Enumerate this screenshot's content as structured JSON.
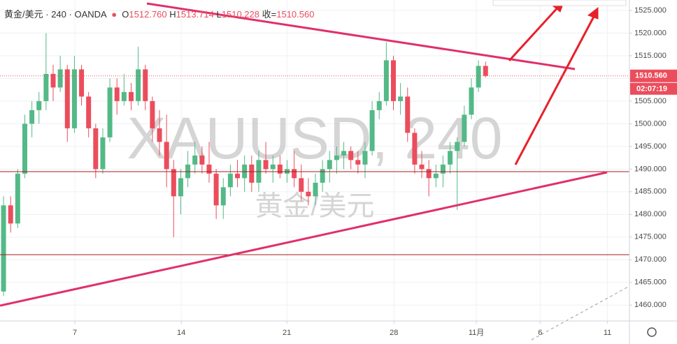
{
  "chart_data": {
    "type": "candlestick",
    "header": {
      "symbol": "黄金/美元",
      "interval": "240",
      "source": "OANDA",
      "o_label": "O",
      "o": "1512.760",
      "h_label": "H",
      "h": "1513.714",
      "l_label": "L",
      "l": "1510.228",
      "c_label": "收",
      "c": "1510.560"
    },
    "watermark": "XAUUSD, 240",
    "watermark_sub": "黄金/美元",
    "last_price_label": "1510.560",
    "countdown": "02:07:19",
    "up_color": "#53b987",
    "down_color": "#eb4d5c",
    "grid": true,
    "xlim": [
      0,
      88.8
    ],
    "ylim": [
      1456.5,
      1527.3
    ],
    "xticks": [
      {
        "value": 10.56,
        "label": "7"
      },
      {
        "value": 25.57,
        "label": "14"
      },
      {
        "value": 40.47,
        "label": "21"
      },
      {
        "value": 55.58,
        "label": "28"
      },
      {
        "value": 67.2,
        "label": "11月"
      },
      {
        "value": 76.2,
        "label": "6"
      },
      {
        "value": 85.7,
        "label": "11"
      }
    ],
    "yticks": [
      {
        "value": 1460,
        "label": "1460.000"
      },
      {
        "value": 1465,
        "label": "1465.000"
      },
      {
        "value": 1470,
        "label": "1470.000"
      },
      {
        "value": 1475,
        "label": "1475.000"
      },
      {
        "value": 1480,
        "label": "1480.000"
      },
      {
        "value": 1485,
        "label": "1485.000"
      },
      {
        "value": 1490,
        "label": "1490.000"
      },
      {
        "value": 1495,
        "label": "1495.000"
      },
      {
        "value": 1500,
        "label": "1500.000"
      },
      {
        "value": 1505,
        "label": "1505.000"
      },
      {
        "value": 1510,
        "label": "1510.000"
      },
      {
        "value": 1515,
        "label": "1515.000"
      },
      {
        "value": 1520,
        "label": "1520.000"
      },
      {
        "value": 1525,
        "label": "1525.000"
      }
    ],
    "candles": [
      [
        1463,
        1484,
        1462,
        1482
      ],
      [
        1482,
        1484,
        1476,
        1478
      ],
      [
        1478,
        1490,
        1477,
        1489
      ],
      [
        1489,
        1502,
        1488,
        1500
      ],
      [
        1500,
        1505,
        1497,
        1503
      ],
      [
        1503,
        1507,
        1500,
        1505
      ],
      [
        1505,
        1520,
        1503,
        1511
      ],
      [
        1511,
        1513,
        1505,
        1508
      ],
      [
        1508,
        1515,
        1507,
        1512
      ],
      [
        1512,
        1513,
        1496,
        1499
      ],
      [
        1499,
        1515,
        1498,
        1512
      ],
      [
        1512,
        1513,
        1504,
        1506
      ],
      [
        1506,
        1507,
        1497,
        1499
      ],
      [
        1499,
        1500,
        1488,
        1490
      ],
      [
        1490,
        1499,
        1489,
        1497
      ],
      [
        1497,
        1510,
        1496,
        1508
      ],
      [
        1508,
        1510,
        1502,
        1505
      ],
      [
        1505,
        1511,
        1504,
        1507
      ],
      [
        1507,
        1509,
        1503,
        1505
      ],
      [
        1505,
        1517,
        1504,
        1512
      ],
      [
        1512,
        1513,
        1503,
        1505
      ],
      [
        1505,
        1506,
        1496,
        1499
      ],
      [
        1499,
        1503,
        1493,
        1496
      ],
      [
        1496,
        1502,
        1486,
        1490
      ],
      [
        1490,
        1492,
        1475,
        1484
      ],
      [
        1484,
        1490,
        1480,
        1488
      ],
      [
        1488,
        1494,
        1486,
        1491
      ],
      [
        1491,
        1496,
        1489,
        1493
      ],
      [
        1493,
        1495,
        1489,
        1491
      ],
      [
        1491,
        1496,
        1487,
        1489
      ],
      [
        1489,
        1490,
        1479,
        1482
      ],
      [
        1482,
        1488,
        1479,
        1486
      ],
      [
        1486,
        1491,
        1484,
        1489
      ],
      [
        1489,
        1492,
        1486,
        1488
      ],
      [
        1488,
        1493,
        1485,
        1491
      ],
      [
        1491,
        1493,
        1485,
        1487
      ],
      [
        1487,
        1494,
        1485,
        1492
      ],
      [
        1492,
        1496,
        1489,
        1490
      ],
      [
        1490,
        1493,
        1487,
        1491
      ],
      [
        1491,
        1493,
        1488,
        1489
      ],
      [
        1489,
        1492,
        1487,
        1490
      ],
      [
        1490,
        1494,
        1486,
        1488
      ],
      [
        1488,
        1491,
        1483,
        1485
      ],
      [
        1485,
        1488,
        1482,
        1484
      ],
      [
        1484,
        1489,
        1482,
        1487
      ],
      [
        1487,
        1492,
        1485,
        1490
      ],
      [
        1490,
        1494,
        1487,
        1492
      ],
      [
        1492,
        1495,
        1489,
        1493
      ],
      [
        1493,
        1496,
        1490,
        1494
      ],
      [
        1494,
        1495,
        1490,
        1492
      ],
      [
        1492,
        1494,
        1489,
        1491
      ],
      [
        1491,
        1496,
        1488,
        1494
      ],
      [
        1494,
        1505,
        1493,
        1503
      ],
      [
        1503,
        1507,
        1501,
        1505
      ],
      [
        1505,
        1518,
        1504,
        1514
      ],
      [
        1514,
        1515,
        1503,
        1505
      ],
      [
        1505,
        1509,
        1502,
        1506
      ],
      [
        1506,
        1508,
        1496,
        1498
      ],
      [
        1498,
        1499,
        1489,
        1491
      ],
      [
        1491,
        1494,
        1488,
        1490
      ],
      [
        1490,
        1492,
        1484,
        1488
      ],
      [
        1488,
        1491,
        1486,
        1489
      ],
      [
        1489,
        1493,
        1486,
        1491
      ],
      [
        1491,
        1496,
        1489,
        1494
      ],
      [
        1494,
        1497,
        1481,
        1496
      ],
      [
        1496,
        1504,
        1495,
        1502
      ],
      [
        1502,
        1510,
        1501,
        1508
      ],
      [
        1508,
        1514,
        1507,
        1512.76
      ],
      [
        1512.76,
        1513.714,
        1510.228,
        1510.56
      ]
    ]
  }
}
